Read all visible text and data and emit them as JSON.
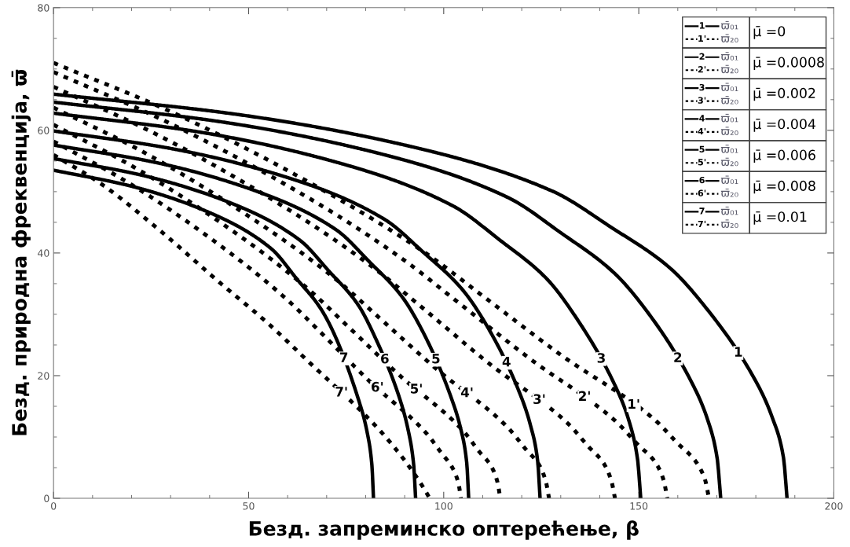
{
  "chart_data": {
    "type": "line",
    "xlabel": "Безд. запреминско оптерећење, β",
    "ylabel": "Безд. природна фреквенција, ϖ̄",
    "xlim": [
      0,
      200
    ],
    "ylim": [
      0,
      80
    ],
    "xticks": [
      0,
      50,
      100,
      150,
      200
    ],
    "yticks": [
      0,
      20,
      40,
      60,
      80
    ],
    "grid": false,
    "legend": "top right",
    "marker": "none",
    "series": [
      {
        "name": "ϖ̄₀₁",
        "color": "#000000",
        "line_style": "solid",
        "x": [
          0,
          47,
          94,
          127.8,
          142.9,
          157.9,
          167.3,
          180.5,
          184.2,
          187.1,
          188
        ],
        "values": [
          65.9,
          62.6,
          57.0,
          50.1,
          44.2,
          37.6,
          31.0,
          18.5,
          13.2,
          6.6,
          0
        ]
      },
      {
        "name": "ϖ̄₂₀",
        "color": "#000000",
        "line_style": "dotted",
        "x": [
          0,
          30.2,
          70.6,
          95.8,
          110,
          130,
          154.1,
          159.9,
          164.6,
          167,
          168
        ],
        "values": [
          71,
          63,
          49.7,
          39.8,
          33,
          23.4,
          12.8,
          9,
          6,
          3,
          0
        ]
      },
      {
        "name": "ϖ̄₀₁",
        "color": "#000000",
        "line_style": "solid",
        "x": [
          0,
          42.8,
          85.5,
          116.3,
          130,
          143.6,
          152.2,
          164.2,
          167.6,
          170.1,
          171
        ],
        "values": [
          64.6,
          61.4,
          55.9,
          49.1,
          43.3,
          36.8,
          30.4,
          18.1,
          12.9,
          6.5,
          0
        ]
      },
      {
        "name": "ϖ̄₂₀",
        "color": "#000000",
        "line_style": "dotted",
        "x": [
          0,
          28.3,
          66.1,
          89.7,
          103,
          121.8,
          144.2,
          149.7,
          154.2,
          156.4,
          157.3
        ],
        "values": [
          69.5,
          61.6,
          48.7,
          38.9,
          32.3,
          22.9,
          12.5,
          8.8,
          5.9,
          2.9,
          0
        ]
      },
      {
        "name": "ϖ̄₀₁",
        "color": "#000000",
        "line_style": "solid",
        "x": [
          0,
          37.6,
          75.3,
          102.3,
          114.4,
          126.4,
          133.9,
          144.5,
          147.5,
          149.7,
          150.5
        ],
        "values": [
          62.8,
          59.7,
          54.3,
          47.7,
          42.1,
          35.8,
          29.5,
          17.6,
          12.6,
          6.3,
          0
        ]
      },
      {
        "name": "ϖ̄₂₀",
        "color": "#000000",
        "line_style": "dotted",
        "x": [
          0,
          25.9,
          60.4,
          82,
          94.3,
          111.4,
          132,
          137,
          141,
          143,
          143.9
        ],
        "values": [
          67.1,
          59.5,
          47,
          37.6,
          31.2,
          22.1,
          12.1,
          8.5,
          5.7,
          2.8,
          0
        ]
      },
      {
        "name": "ϖ̄₀₁",
        "color": "#000000",
        "line_style": "solid",
        "x": [
          0,
          31.2,
          62.4,
          84.8,
          94.8,
          104.7,
          111,
          119.7,
          122.2,
          124.1,
          124.7
        ],
        "values": [
          59.9,
          56.9,
          51.8,
          45.5,
          40.1,
          34.1,
          28.2,
          16.8,
          12,
          6,
          0
        ]
      },
      {
        "name": "ϖ̄₂₀",
        "color": "#000000",
        "line_style": "dotted",
        "x": [
          0,
          22.9,
          53.3,
          72.4,
          83.2,
          98.3,
          116.5,
          120.9,
          124.5,
          126.2,
          127
        ],
        "values": [
          63.7,
          56.5,
          44.6,
          35.7,
          29.6,
          21,
          11.5,
          8.1,
          5.4,
          2.7,
          0
        ]
      },
      {
        "name": "ϖ̄₀₁",
        "color": "#000000",
        "line_style": "solid",
        "x": [
          0,
          26.6,
          53.2,
          72.4,
          80.9,
          89.4,
          94.7,
          102.1,
          104.3,
          105.9,
          106.4
        ],
        "values": [
          57.6,
          54.7,
          49.8,
          43.8,
          38.6,
          32.8,
          27.1,
          16.1,
          11.5,
          5.8,
          0
        ]
      },
      {
        "name": "ϖ̄₂₀",
        "color": "#000000",
        "line_style": "dotted",
        "x": [
          0,
          20.6,
          48.1,
          65.3,
          75,
          88.6,
          105,
          109,
          112.2,
          113.8,
          114.5
        ],
        "values": [
          60.9,
          54,
          42.6,
          34.1,
          28.3,
          20.1,
          11,
          7.7,
          5.2,
          2.6,
          0
        ]
      },
      {
        "name": "ϖ̄₀₁",
        "color": "#000000",
        "line_style": "solid",
        "x": [
          0,
          23.2,
          46.4,
          63.1,
          70.5,
          78,
          82.6,
          89.1,
          90.9,
          92.3,
          92.8
        ],
        "values": [
          55.4,
          52.6,
          47.9,
          42.1,
          37.1,
          31.6,
          26,
          15.5,
          11.1,
          5.5,
          0
        ]
      },
      {
        "name": "ϖ̄₂₀",
        "color": "#000000",
        "line_style": "dotted",
        "x": [
          0,
          18.8,
          43.8,
          59.5,
          68.4,
          80.8,
          95.7,
          99.4,
          102.3,
          103.8,
          104.4
        ],
        "values": [
          58.2,
          51.6,
          40.7,
          32.6,
          27.1,
          19.2,
          10.5,
          7.4,
          4.9,
          2.4,
          0
        ]
      },
      {
        "name": "ϖ̄₀₁",
        "color": "#000000",
        "line_style": "solid",
        "x": [
          0,
          20.5,
          41,
          55.8,
          62.3,
          68.9,
          78.7,
          80.4,
          81.6,
          82
        ],
        "values": [
          53.5,
          50.8,
          46.3,
          40.7,
          35.8,
          30.5,
          15,
          10.7,
          5.4,
          0
        ]
      },
      {
        "name": "ϖ̄₂₀",
        "color": "#000000",
        "line_style": "dotted",
        "x": [
          0,
          11.9,
          27.2,
          42,
          55,
          65,
          83,
          89,
          93,
          95.5,
          96.4
        ],
        "values": [
          56,
          51.4,
          43.7,
          35.5,
          28.5,
          22.5,
          11.5,
          7,
          3.5,
          1,
          0
        ]
      }
    ],
    "annotations": [
      {
        "text": "1",
        "x": 175.5,
        "y": 23.7
      },
      {
        "text": "1'",
        "x": 148.7,
        "y": 15.2
      },
      {
        "text": "2",
        "x": 160,
        "y": 22.8
      },
      {
        "text": "2'",
        "x": 136.1,
        "y": 16.5
      },
      {
        "text": "3",
        "x": 140.4,
        "y": 22.7
      },
      {
        "text": "3'",
        "x": 124.5,
        "y": 16
      },
      {
        "text": "4",
        "x": 116.1,
        "y": 22.1
      },
      {
        "text": "4'",
        "x": 106,
        "y": 17.1
      },
      {
        "text": "5",
        "x": 98,
        "y": 22.6
      },
      {
        "text": "5'",
        "x": 93,
        "y": 17.7
      },
      {
        "text": "6",
        "x": 84.9,
        "y": 22.6
      },
      {
        "text": "6'",
        "x": 83,
        "y": 18
      },
      {
        "text": "7",
        "x": 74.4,
        "y": 22.8
      },
      {
        "text": "7'",
        "x": 73.8,
        "y": 17.2
      },
      "μ̄ =0",
      "μ̄ =0.0008",
      "μ̄ =0.002",
      "μ̄ =0.004",
      "μ̄ =0.006",
      "μ̄ =0.008",
      "μ̄ =0.01"
    ]
  }
}
